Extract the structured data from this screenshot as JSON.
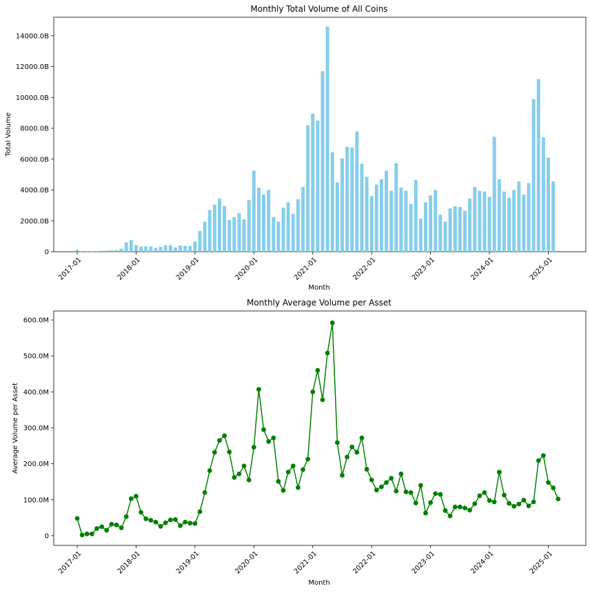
{
  "chart_data": [
    {
      "type": "bar",
      "title": "Monthly Total Volume of All Coins",
      "xlabel": "Month",
      "ylabel": "Total Volume",
      "ylim": [
        0,
        15200
      ],
      "y_ticks": [
        0,
        2000,
        4000,
        6000,
        8000,
        10000,
        12000,
        14000
      ],
      "y_tick_labels": [
        "0",
        "2000.0B",
        "4000.0B",
        "6000.0B",
        "8000.0B",
        "10000.0B",
        "12000.0B",
        "14000.0B"
      ],
      "x_ticks": [
        "2017-01",
        "2018-01",
        "2019-01",
        "2020-01",
        "2021-01",
        "2022-01",
        "2023-01",
        "2024-01",
        "2025-01"
      ],
      "color": "#87ceeb",
      "series": [
        {
          "values": [
            130,
            40,
            30,
            30,
            40,
            60,
            80,
            100,
            110,
            200,
            600,
            750,
            430,
            330,
            340,
            340,
            250,
            320,
            420,
            420,
            280,
            400,
            380,
            370,
            650,
            1350,
            1950,
            2700,
            3050,
            3450,
            2950,
            2050,
            2250,
            2500,
            2100,
            3350,
            5250,
            4150,
            3700,
            4000,
            2250,
            1950,
            2850,
            3200,
            2450,
            3400,
            4200,
            8200,
            8950,
            8500,
            11700,
            14600,
            6450,
            4500,
            6050,
            6800,
            6750,
            7800,
            5700,
            4850,
            3600,
            4350,
            4700,
            5250,
            3950,
            5750,
            4150,
            3950,
            3100,
            4650,
            2150,
            3200,
            3650,
            4000,
            2400,
            1950,
            2800,
            2950,
            2900,
            2650,
            3450,
            4200,
            3950,
            3900,
            3550,
            7450,
            4700,
            3900,
            3500,
            4000,
            4550,
            3700,
            4450,
            9900,
            11200,
            7400,
            6100,
            4550
          ]
        }
      ]
    },
    {
      "type": "line",
      "title": "Monthly Average Volume per Asset",
      "xlabel": "Month",
      "ylabel": "Average Volume per Asset",
      "ylim": [
        -27,
        625
      ],
      "y_ticks": [
        0,
        100,
        200,
        300,
        400,
        500,
        600
      ],
      "y_tick_labels": [
        "0",
        "100.0M",
        "200.0M",
        "300.0M",
        "400.0M",
        "500.0M",
        "600.0M"
      ],
      "x_ticks": [
        "2017-01",
        "2018-01",
        "2019-01",
        "2020-01",
        "2021-01",
        "2022-01",
        "2023-01",
        "2024-01",
        "2025-01"
      ],
      "color": "#008000",
      "markers": true,
      "series": [
        {
          "values": [
            48,
            2,
            5,
            5,
            20,
            25,
            15,
            32,
            30,
            22,
            53,
            103,
            110,
            65,
            47,
            43,
            38,
            26,
            36,
            44,
            45,
            28,
            38,
            35,
            34,
            67,
            120,
            181,
            232,
            265,
            278,
            233,
            162,
            172,
            194,
            155,
            246,
            407,
            295,
            262,
            272,
            151,
            126,
            177,
            194,
            134,
            184,
            213,
            400,
            460,
            378,
            508,
            592,
            259,
            168,
            219,
            247,
            232,
            272,
            185,
            155,
            127,
            136,
            148,
            160,
            124,
            172,
            122,
            120,
            91,
            140,
            63,
            92,
            117,
            115,
            70,
            55,
            80,
            80,
            77,
            71,
            89,
            111,
            120,
            98,
            94,
            177,
            113,
            90,
            82,
            88,
            99,
            83,
            94,
            209,
            223,
            148,
            133,
            102
          ]
        }
      ]
    }
  ]
}
